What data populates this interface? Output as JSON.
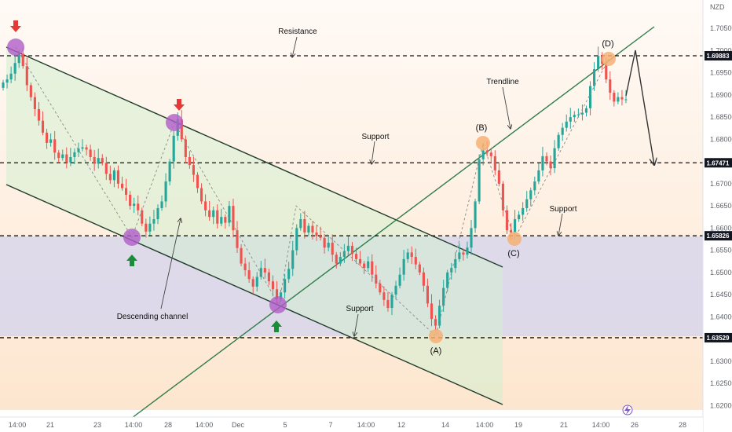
{
  "chart_data": {
    "type": "candlestick",
    "currency": "NZD",
    "y_ticks": [
      1.705,
      1.7,
      1.695,
      1.69,
      1.685,
      1.68,
      1.675,
      1.67,
      1.665,
      1.66,
      1.655,
      1.65,
      1.645,
      1.64,
      1.635,
      1.63,
      1.625,
      1.62
    ],
    "ylim": [
      1.6174,
      1.7114
    ],
    "x_ticks": [
      "14:00",
      "21",
      "23",
      "14:00",
      "28",
      "14:00",
      "Dec",
      "5",
      "7",
      "14:00",
      "12",
      "14",
      "14:00",
      "19",
      "21",
      "14:00",
      "26",
      "28"
    ],
    "levels": [
      {
        "value": "1.69883",
        "y": 1.69883
      },
      {
        "value": "1.67471",
        "y": 1.67471
      },
      {
        "value": "1.65826",
        "y": 1.65826
      },
      {
        "value": "1.63529",
        "y": 1.63529
      }
    ],
    "annotations": {
      "resistance": "Resistance",
      "trendline": "Trendline",
      "support_1": "Support",
      "support_2": "Support",
      "support_3": "Support",
      "descending_channel": "Descending channel"
    },
    "wave_labels": [
      "(A)",
      "(B)",
      "(C)",
      "(D)"
    ],
    "close": [
      1.6928,
      1.6935,
      1.6948,
      1.6972,
      1.6993,
      1.6965,
      1.6922,
      1.6895,
      1.6868,
      1.6842,
      1.6815,
      1.6792,
      1.68,
      1.677,
      1.6758,
      1.6766,
      1.6748,
      1.676,
      1.6771,
      1.6779,
      1.6782,
      1.6777,
      1.676,
      1.6745,
      1.6758,
      1.6747,
      1.6722,
      1.6708,
      1.673,
      1.67,
      1.669,
      1.6675,
      1.665,
      1.6655,
      1.664,
      1.661,
      1.6592,
      1.661,
      1.662,
      1.6645,
      1.666,
      1.6705,
      1.675,
      1.6808,
      1.6845,
      1.68,
      1.676,
      1.6742,
      1.672,
      1.669,
      1.666,
      1.664,
      1.6625,
      1.664,
      1.661,
      1.6625,
      1.6612,
      1.665,
      1.6595,
      1.6555,
      1.652,
      1.6505,
      1.6485,
      1.6468,
      1.649,
      1.651,
      1.65,
      1.648,
      1.6462,
      1.644,
      1.6455,
      1.6485,
      1.6508,
      1.655,
      1.66,
      1.662,
      1.659,
      1.6605,
      1.659,
      1.6582,
      1.6578,
      1.6556,
      1.6567,
      1.654,
      1.652,
      1.6535,
      1.6548,
      1.656,
      1.6542,
      1.653,
      1.652,
      1.651,
      1.6525,
      1.6495,
      1.6475,
      1.6455,
      1.6438,
      1.642,
      1.645,
      1.647,
      1.6495,
      1.653,
      1.6545,
      1.6535,
      1.6518,
      1.65,
      1.647,
      1.643,
      1.6395,
      1.638,
      1.6425,
      1.6465,
      1.65,
      1.651,
      1.653,
      1.6545,
      1.654,
      1.6556,
      1.66,
      1.666,
      1.6755,
      1.6775,
      1.677,
      1.6762,
      1.673,
      1.67,
      1.664,
      1.6595,
      1.659,
      1.662,
      1.663,
      1.6645,
      1.6665,
      1.6685,
      1.6705,
      1.673,
      1.6762,
      1.675,
      1.6735,
      1.678,
      1.681,
      1.6826,
      1.684,
      1.685,
      1.6855,
      1.6856,
      1.686,
      1.687,
      1.692,
      1.6958,
      1.6988,
      1.697,
      1.6935,
      1.6905,
      1.6885,
      1.6895,
      1.689,
      1.689
    ]
  }
}
